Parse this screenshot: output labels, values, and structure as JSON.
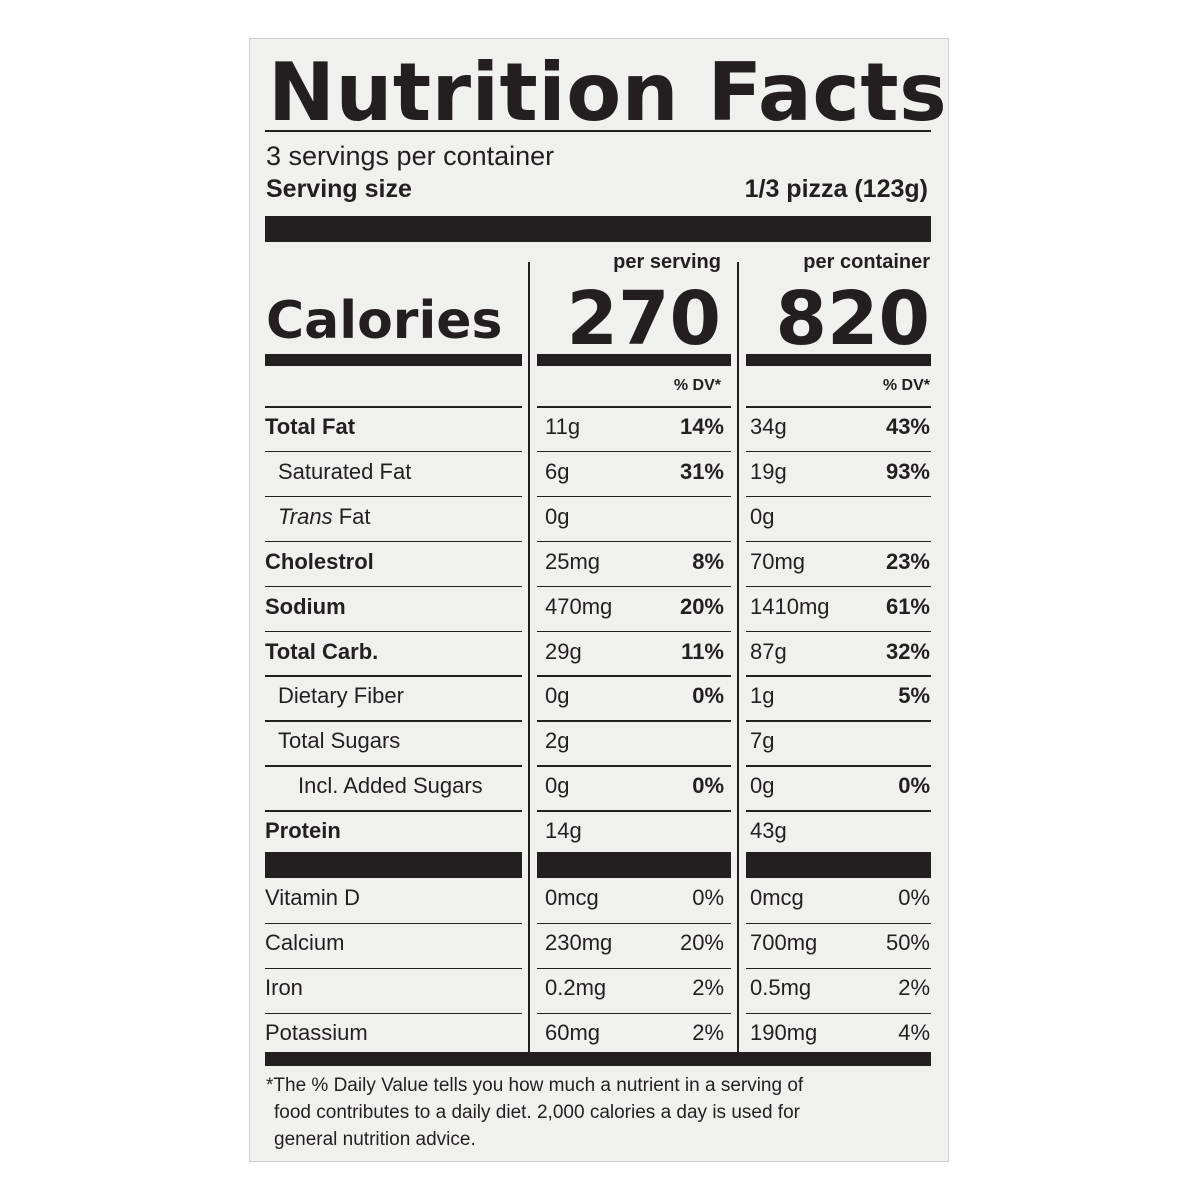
{
  "label": {
    "title": "Nutrition Facts",
    "servings_per_container": "3 servings per container",
    "serving_size_label": "Serving size",
    "serving_size_value": "1/3 pizza (123g)",
    "col_per_serving": "per serving",
    "col_per_container": "per container",
    "calories_label": "Calories",
    "calories_per_serving": "270",
    "calories_per_container": "820",
    "dv_header": "% DV*"
  },
  "nutrients": [
    {
      "name": "Total Fat",
      "bold": true,
      "indent": 0,
      "s_amt": "11g",
      "s_dv": "14%",
      "c_amt": "34g",
      "c_dv": "43%"
    },
    {
      "name": "Saturated Fat",
      "bold": false,
      "indent": 1,
      "s_amt": "6g",
      "s_dv": "31%",
      "c_amt": "19g",
      "c_dv": "93%"
    },
    {
      "name_italic": "Trans",
      "name": " Fat",
      "bold": false,
      "indent": 1,
      "s_amt": "0g",
      "s_dv": "",
      "c_amt": "0g",
      "c_dv": ""
    },
    {
      "name": "Cholestrol",
      "bold": true,
      "indent": 0,
      "s_amt": "25mg",
      "s_dv": "8%",
      "c_amt": "70mg",
      "c_dv": "23%"
    },
    {
      "name": "Sodium",
      "bold": true,
      "indent": 0,
      "s_amt": "470mg",
      "s_dv": "20%",
      "c_amt": "1410mg",
      "c_dv": "61%"
    },
    {
      "name": "Total Carb.",
      "bold": true,
      "indent": 0,
      "s_amt": "29g",
      "s_dv": "11%",
      "c_amt": "87g",
      "c_dv": "32%"
    },
    {
      "name": "Dietary Fiber",
      "bold": false,
      "indent": 1,
      "s_amt": "0g",
      "s_dv": "0%",
      "c_amt": "1g",
      "c_dv": "5%"
    },
    {
      "name": "Total Sugars",
      "bold": false,
      "indent": 1,
      "s_amt": "2g",
      "s_dv": "",
      "c_amt": "7g",
      "c_dv": ""
    },
    {
      "name": "Incl. Added Sugars",
      "bold": false,
      "indent": 2,
      "s_amt": "0g",
      "s_dv": "0%",
      "c_amt": "0g",
      "c_dv": "0%"
    },
    {
      "name": "Protein",
      "bold": true,
      "indent": 0,
      "s_amt": "14g",
      "s_dv": "",
      "c_amt": "43g",
      "c_dv": ""
    }
  ],
  "vitamins": [
    {
      "name": "Vitamin D",
      "s_amt": "0mcg",
      "s_dv": "0%",
      "c_amt": "0mcg",
      "c_dv": "0%"
    },
    {
      "name": "Calcium",
      "s_amt": "230mg",
      "s_dv": "20%",
      "c_amt": "700mg",
      "c_dv": "50%"
    },
    {
      "name": "Iron",
      "s_amt": "0.2mg",
      "s_dv": "2%",
      "c_amt": "0.5mg",
      "c_dv": "2%"
    },
    {
      "name": "Potassium",
      "s_amt": "60mg",
      "s_dv": "2%",
      "c_amt": "190mg",
      "c_dv": "4%"
    }
  ],
  "footnote": {
    "line1": "*The % Daily Value tells you how much a nutrient in a serving of",
    "line2": "food contributes to a daily diet. 2,000 calories a day is used for",
    "line3": "general nutrition advice."
  }
}
